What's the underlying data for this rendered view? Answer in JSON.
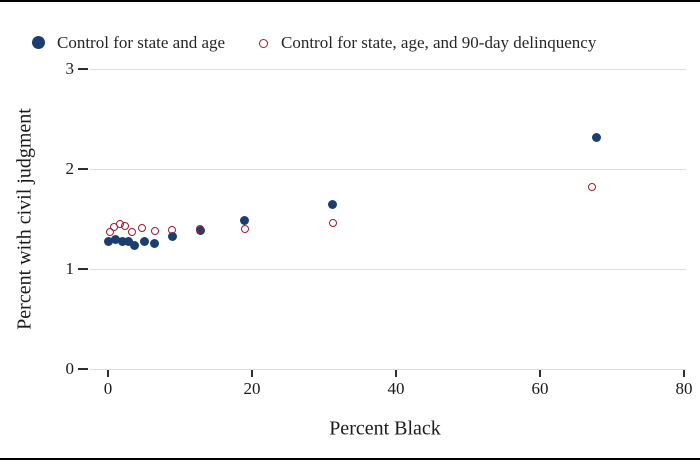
{
  "legend": {
    "items": [
      {
        "label": "Control for state and age",
        "marker": "filled-circle",
        "color": "#1b3e6f"
      },
      {
        "label": "Control for state, age, and 90-day delinquency",
        "marker": "open-circle",
        "color": "#9f1b30"
      }
    ]
  },
  "colors": {
    "series1_navy": "#1b3e6f",
    "series2_maroon": "#9f1b30",
    "gridline": "#dddddd",
    "tick": "#2e2e2e",
    "text": "#1a1a1a",
    "frame_border": "#000000",
    "background": "#ffffff"
  },
  "chart_data": {
    "type": "scatter",
    "title": "",
    "xlabel": "Percent Black",
    "ylabel": "Percent with civil judgment",
    "xlim": [
      0,
      80
    ],
    "ylim": [
      0,
      3
    ],
    "xticks": [
      0,
      20,
      40,
      60,
      80
    ],
    "yticks": [
      0,
      1,
      2,
      3
    ],
    "grid": "horizontal",
    "legend_position": "top-left",
    "series": [
      {
        "name": "Control for state and age",
        "marker": "filled-circle",
        "color": "#1b3e6f",
        "points": [
          [
            0.0,
            1.28
          ],
          [
            1.0,
            1.3
          ],
          [
            2.0,
            1.28
          ],
          [
            2.9,
            1.28
          ],
          [
            3.7,
            1.24
          ],
          [
            5.0,
            1.28
          ],
          [
            6.5,
            1.26
          ],
          [
            8.9,
            1.33
          ],
          [
            12.8,
            1.39
          ],
          [
            19.0,
            1.49
          ],
          [
            31.2,
            1.65
          ],
          [
            67.8,
            2.32
          ]
        ]
      },
      {
        "name": "Control for state, age, and 90-day delinquency",
        "marker": "open-circle",
        "color": "#9f1b30",
        "points": [
          [
            0.3,
            1.37
          ],
          [
            0.8,
            1.42
          ],
          [
            1.7,
            1.45
          ],
          [
            2.4,
            1.43
          ],
          [
            3.3,
            1.37
          ],
          [
            4.7,
            1.41
          ],
          [
            6.5,
            1.38
          ],
          [
            8.9,
            1.39
          ],
          [
            12.8,
            1.4
          ],
          [
            19.0,
            1.4
          ],
          [
            31.2,
            1.46
          ],
          [
            67.2,
            1.82
          ]
        ]
      }
    ]
  }
}
